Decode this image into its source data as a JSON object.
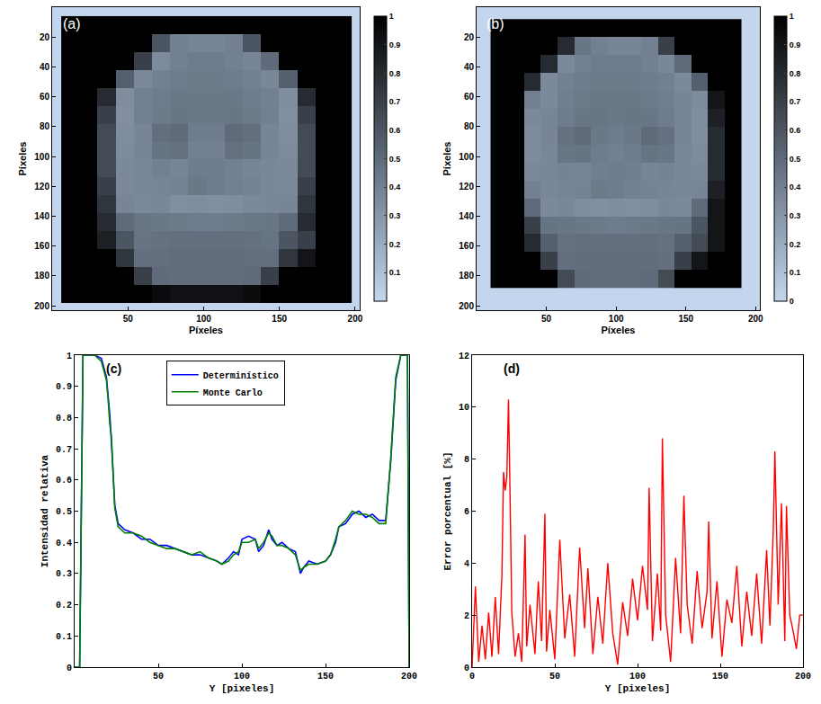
{
  "chart_data": [
    {
      "type": "heatmap",
      "title": "(a)",
      "x_label": "Píxeles",
      "y_label": "Píxeles",
      "x": [
        12,
        24,
        36,
        48,
        60,
        72,
        84,
        96,
        108,
        120,
        132,
        144,
        156,
        168,
        180,
        192
      ],
      "y": [
        12,
        24,
        36,
        48,
        60,
        72,
        84,
        96,
        108,
        120,
        132,
        144,
        156,
        168,
        180,
        192
      ],
      "cells": [
        [
          1,
          1,
          1,
          1,
          1,
          1,
          1,
          1,
          1,
          1,
          1,
          1,
          1,
          1,
          1,
          1
        ],
        [
          1,
          1,
          1,
          1,
          1,
          0.6,
          0.4,
          0.38,
          0.38,
          0.4,
          0.6,
          1,
          1,
          1,
          1,
          1
        ],
        [
          1,
          1,
          1,
          1,
          0.7,
          0.35,
          0.4,
          0.42,
          0.42,
          0.4,
          0.38,
          0.5,
          1,
          1,
          1,
          1
        ],
        [
          1,
          1,
          1,
          0.55,
          0.36,
          0.4,
          0.42,
          0.43,
          0.43,
          0.42,
          0.4,
          0.37,
          0.55,
          1,
          1,
          1
        ],
        [
          1,
          1,
          0.8,
          0.34,
          0.4,
          0.42,
          0.44,
          0.44,
          0.44,
          0.44,
          0.42,
          0.4,
          0.34,
          0.8,
          1,
          1
        ],
        [
          1,
          1,
          0.7,
          0.33,
          0.4,
          0.43,
          0.45,
          0.44,
          0.44,
          0.45,
          0.43,
          0.4,
          0.33,
          0.7,
          1,
          1
        ],
        [
          1,
          1,
          0.65,
          0.34,
          0.38,
          0.48,
          0.5,
          0.42,
          0.42,
          0.5,
          0.48,
          0.38,
          0.34,
          0.65,
          1,
          1
        ],
        [
          1,
          1,
          0.65,
          0.35,
          0.38,
          0.46,
          0.47,
          0.4,
          0.4,
          0.47,
          0.46,
          0.38,
          0.35,
          0.65,
          1,
          1
        ],
        [
          1,
          1,
          0.65,
          0.36,
          0.37,
          0.4,
          0.38,
          0.42,
          0.42,
          0.4,
          0.38,
          0.37,
          0.36,
          0.65,
          1,
          1
        ],
        [
          1,
          1,
          0.7,
          0.36,
          0.37,
          0.38,
          0.39,
          0.44,
          0.42,
          0.4,
          0.39,
          0.37,
          0.36,
          0.7,
          1,
          1
        ],
        [
          1,
          1,
          0.75,
          0.38,
          0.36,
          0.37,
          0.33,
          0.34,
          0.33,
          0.34,
          0.36,
          0.37,
          0.38,
          0.75,
          1,
          1
        ],
        [
          1,
          1,
          0.8,
          0.5,
          0.45,
          0.44,
          0.43,
          0.42,
          0.42,
          0.43,
          0.44,
          0.45,
          0.5,
          0.8,
          1,
          1
        ],
        [
          1,
          1,
          0.85,
          0.6,
          0.46,
          0.47,
          0.48,
          0.48,
          0.48,
          0.48,
          0.47,
          0.46,
          0.6,
          0.7,
          1,
          1
        ],
        [
          1,
          1,
          1,
          0.75,
          0.48,
          0.48,
          0.49,
          0.49,
          0.49,
          0.49,
          0.48,
          0.48,
          0.75,
          0.9,
          1,
          1
        ],
        [
          1,
          1,
          1,
          1,
          0.7,
          0.5,
          0.49,
          0.49,
          0.49,
          0.49,
          0.5,
          0.7,
          1,
          1,
          1,
          1
        ],
        [
          1,
          1,
          1,
          1,
          1,
          0.95,
          0.92,
          0.92,
          0.92,
          0.92,
          0.95,
          1,
          1,
          1,
          1,
          1
        ]
      ],
      "xlim": [
        0,
        203
      ],
      "ylim": [
        203,
        0
      ],
      "xticks": [
        50,
        100,
        150,
        200
      ],
      "yticks": [
        20,
        40,
        60,
        80,
        100,
        120,
        140,
        160,
        180,
        200
      ],
      "colorbar_range": [
        0,
        1
      ],
      "colorbar_ticks": [
        0.1,
        0.2,
        0.3,
        0.4,
        0.5,
        0.6,
        0.7,
        0.8,
        0.9,
        1
      ]
    },
    {
      "type": "heatmap",
      "title": "(b)",
      "x_label": "Píxeles",
      "y_label": "Píxeles",
      "x": [
        16,
        28,
        40,
        52,
        64,
        76,
        88,
        100,
        112,
        124,
        136,
        148,
        160,
        172,
        184
      ],
      "y": [
        14,
        26,
        38,
        50,
        62,
        74,
        86,
        98,
        110,
        122,
        134,
        146,
        158,
        170,
        182
      ],
      "cells": [
        [
          1,
          1,
          1,
          1,
          1,
          1,
          1,
          1,
          1,
          1,
          1,
          1,
          1,
          1,
          1
        ],
        [
          1,
          1,
          1,
          1,
          0.8,
          0.45,
          0.4,
          0.38,
          0.38,
          0.4,
          0.7,
          1,
          1,
          1,
          1
        ],
        [
          1,
          1,
          1,
          0.8,
          0.36,
          0.4,
          0.42,
          0.42,
          0.42,
          0.4,
          0.37,
          0.5,
          1,
          1,
          1
        ],
        [
          1,
          1,
          0.8,
          0.36,
          0.4,
          0.42,
          0.43,
          0.43,
          0.43,
          0.42,
          0.4,
          0.36,
          0.55,
          1,
          1
        ],
        [
          1,
          1,
          0.4,
          0.36,
          0.41,
          0.43,
          0.44,
          0.44,
          0.44,
          0.43,
          0.41,
          0.38,
          0.35,
          0.9,
          1
        ],
        [
          1,
          1,
          0.36,
          0.38,
          0.42,
          0.45,
          0.45,
          0.44,
          0.45,
          0.45,
          0.42,
          0.38,
          0.34,
          0.85,
          1
        ],
        [
          1,
          1,
          0.35,
          0.38,
          0.47,
          0.5,
          0.44,
          0.42,
          0.44,
          0.5,
          0.47,
          0.38,
          0.34,
          0.8,
          1
        ],
        [
          1,
          1,
          0.35,
          0.37,
          0.45,
          0.46,
          0.42,
          0.4,
          0.42,
          0.46,
          0.45,
          0.37,
          0.35,
          0.8,
          1
        ],
        [
          1,
          1,
          0.36,
          0.37,
          0.39,
          0.38,
          0.41,
          0.42,
          0.41,
          0.38,
          0.39,
          0.37,
          0.36,
          0.8,
          1
        ],
        [
          1,
          1,
          0.4,
          0.37,
          0.38,
          0.39,
          0.43,
          0.42,
          0.4,
          0.39,
          0.38,
          0.37,
          0.38,
          0.85,
          1
        ],
        [
          1,
          1,
          0.5,
          0.36,
          0.37,
          0.34,
          0.33,
          0.34,
          0.33,
          0.34,
          0.37,
          0.36,
          0.5,
          0.9,
          1
        ],
        [
          1,
          1,
          0.7,
          0.46,
          0.45,
          0.44,
          0.43,
          0.42,
          0.43,
          0.44,
          0.45,
          0.46,
          0.6,
          0.9,
          1
        ],
        [
          1,
          1,
          0.8,
          0.55,
          0.47,
          0.48,
          0.48,
          0.48,
          0.48,
          0.48,
          0.47,
          0.55,
          0.65,
          0.9,
          1
        ],
        [
          1,
          1,
          1,
          0.7,
          0.48,
          0.49,
          0.49,
          0.49,
          0.49,
          0.49,
          0.48,
          0.7,
          0.9,
          1,
          1
        ],
        [
          1,
          1,
          1,
          1,
          0.65,
          0.5,
          0.49,
          0.49,
          0.49,
          0.5,
          0.65,
          1,
          1,
          1,
          1
        ]
      ],
      "xlim": [
        0,
        203
      ],
      "ylim": [
        203,
        0
      ],
      "xticks": [
        50,
        100,
        150,
        200
      ],
      "yticks": [
        20,
        40,
        60,
        80,
        100,
        120,
        140,
        160,
        180,
        200
      ],
      "colorbar_range": [
        0,
        1
      ],
      "colorbar_ticks": [
        0,
        0.1,
        0.2,
        0.3,
        0.4,
        0.5,
        0.6,
        0.7,
        0.8,
        0.9,
        1
      ]
    },
    {
      "type": "line",
      "title": "(c)",
      "x_label": "Y [pixeles]",
      "y_label": "Intensidad relativa",
      "x": [
        0,
        3,
        5,
        8,
        12,
        16,
        19,
        20,
        21,
        22,
        23,
        24,
        26,
        30,
        35,
        40,
        45,
        50,
        55,
        60,
        65,
        70,
        75,
        80,
        85,
        88,
        92,
        95,
        98,
        100,
        104,
        108,
        110,
        113,
        116,
        118,
        121,
        124,
        128,
        132,
        135,
        137,
        140,
        145,
        150,
        153,
        156,
        158,
        162,
        166,
        170,
        174,
        178,
        182,
        186,
        189,
        192,
        195,
        197,
        199,
        200
      ],
      "series": [
        {
          "name": "Determinístico",
          "color": "#0000ff",
          "values": [
            0,
            0,
            1,
            1,
            1,
            0.99,
            0.93,
            0.87,
            0.81,
            0.72,
            0.62,
            0.52,
            0.46,
            0.44,
            0.43,
            0.41,
            0.41,
            0.39,
            0.39,
            0.38,
            0.37,
            0.36,
            0.36,
            0.35,
            0.34,
            0.33,
            0.35,
            0.37,
            0.36,
            0.41,
            0.42,
            0.41,
            0.37,
            0.39,
            0.44,
            0.41,
            0.39,
            0.4,
            0.38,
            0.37,
            0.3,
            0.32,
            0.34,
            0.33,
            0.34,
            0.36,
            0.4,
            0.45,
            0.46,
            0.49,
            0.5,
            0.48,
            0.49,
            0.47,
            0.47,
            0.66,
            0.92,
            1,
            1,
            1,
            0
          ]
        },
        {
          "name": "Monte Carlo",
          "color": "#008000",
          "values": [
            0,
            0,
            1,
            1,
            1,
            0.98,
            0.92,
            0.86,
            0.78,
            0.74,
            0.63,
            0.51,
            0.45,
            0.43,
            0.43,
            0.42,
            0.4,
            0.39,
            0.38,
            0.38,
            0.37,
            0.36,
            0.37,
            0.35,
            0.34,
            0.33,
            0.34,
            0.36,
            0.37,
            0.4,
            0.4,
            0.41,
            0.38,
            0.4,
            0.43,
            0.42,
            0.39,
            0.39,
            0.38,
            0.36,
            0.31,
            0.32,
            0.33,
            0.33,
            0.34,
            0.36,
            0.41,
            0.45,
            0.47,
            0.5,
            0.49,
            0.49,
            0.48,
            0.46,
            0.46,
            0.67,
            0.93,
            1,
            1,
            1,
            0
          ]
        }
      ],
      "xlim": [
        0,
        200
      ],
      "ylim": [
        0,
        1
      ],
      "xticks": [
        50,
        100,
        150,
        200
      ],
      "yticks": [
        0,
        0.1,
        0.2,
        0.3,
        0.4,
        0.5,
        0.6,
        0.7,
        0.8,
        0.9,
        1
      ],
      "legend": "top"
    },
    {
      "type": "line",
      "title": "(d)",
      "x_label": "Y [pixeles]",
      "y_label": "Error porcentual [%]",
      "x": [
        0,
        2,
        4,
        6,
        8,
        10,
        12,
        14,
        16,
        18,
        19,
        20,
        21,
        22,
        23,
        24,
        26,
        28,
        30,
        32,
        33,
        35,
        38,
        40,
        42,
        44,
        45,
        47,
        50,
        53,
        56,
        59,
        62,
        65,
        68,
        70,
        73,
        76,
        79,
        82,
        85,
        88,
        91,
        94,
        97,
        100,
        103,
        106,
        107,
        109,
        112,
        114,
        115,
        117,
        120,
        123,
        126,
        128,
        130,
        133,
        136,
        139,
        142,
        143,
        145,
        148,
        151,
        154,
        157,
        160,
        163,
        166,
        169,
        172,
        175,
        178,
        180,
        182,
        183,
        185,
        187,
        189,
        190,
        192,
        194,
        196,
        198,
        200
      ],
      "values": [
        0,
        3.1,
        0.2,
        1.6,
        0.3,
        2.1,
        0.4,
        2.7,
        0.5,
        3.5,
        7.5,
        6.8,
        7.3,
        10.3,
        6.4,
        2.1,
        0.4,
        1.3,
        0.2,
        5.1,
        0.8,
        2.4,
        0.5,
        3.3,
        1.0,
        5.9,
        0.6,
        2.2,
        0.3,
        4.9,
        1.1,
        2.8,
        0.4,
        4.6,
        1.5,
        3.8,
        0.5,
        2.7,
        0.9,
        4.0,
        1.3,
        0.1,
        2.5,
        1.2,
        3.4,
        1.8,
        3.9,
        2.2,
        6.9,
        1.0,
        3.6,
        1.4,
        8.8,
        2.0,
        0.2,
        4.2,
        1.3,
        6.6,
        2.4,
        0.9,
        3.7,
        1.5,
        2.9,
        5.6,
        1.1,
        3.3,
        0.4,
        2.6,
        1.7,
        3.9,
        0.8,
        2.9,
        1.2,
        3.6,
        0.9,
        4.5,
        1.6,
        5.2,
        8.3,
        2.4,
        6.3,
        1.0,
        6.2,
        2.0,
        1.4,
        0.7,
        2.0,
        2.0
      ],
      "color": "#ff0000",
      "xlim": [
        0,
        200
      ],
      "ylim": [
        0,
        12
      ],
      "xticks": [
        0,
        50,
        100,
        150,
        200
      ],
      "yticks": [
        0,
        2,
        4,
        6,
        8,
        10,
        12
      ]
    }
  ]
}
